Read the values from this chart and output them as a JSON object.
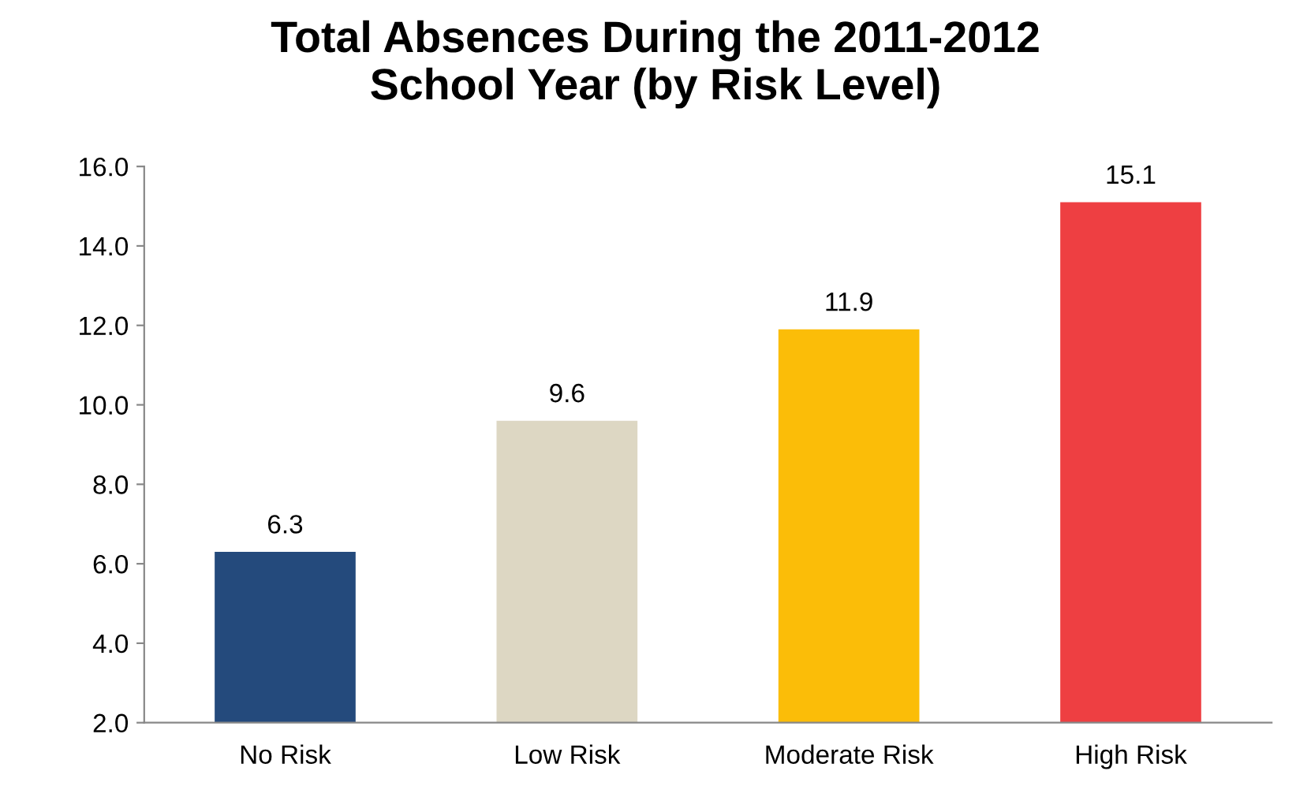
{
  "chart_data": {
    "type": "bar",
    "title": "Total Absences During the 2011-2012\nSchool Year (by Risk Level)",
    "categories": [
      "No Risk",
      "Low Risk",
      "Moderate Risk",
      "High Risk"
    ],
    "values": [
      6.3,
      9.6,
      11.9,
      15.1
    ],
    "colors": [
      "#244a7c",
      "#ddd7c3",
      "#fbbd08",
      "#ee3f42"
    ],
    "ylim": [
      2,
      16
    ],
    "yticks": [
      {
        "value": 2,
        "label": "2.0"
      },
      {
        "value": 4,
        "label": "4.0"
      },
      {
        "value": 6,
        "label": "6.0"
      },
      {
        "value": 8,
        "label": "8.0"
      },
      {
        "value": 10,
        "label": "10.0"
      },
      {
        "value": 12,
        "label": "12.0"
      },
      {
        "value": 14,
        "label": "14.0"
      },
      {
        "value": 16,
        "label": "16.0"
      }
    ],
    "data_labels": true,
    "grid": false
  }
}
